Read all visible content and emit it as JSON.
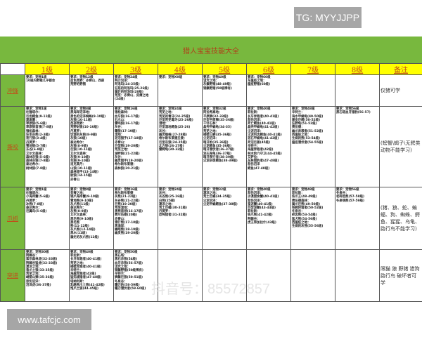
{
  "badges": {
    "tg": "TG: MYYJJPP",
    "site": "www.tafcjc.com"
  },
  "watermark": "抖音号：85572857",
  "title": "猎人宝宝技能大全",
  "colors": {
    "title_band": "#78b83e",
    "header": "#ffff00",
    "header_text": "#c0501a"
  },
  "headers": [
    "1级",
    "2级",
    "3级",
    "4级",
    "5级",
    "6级",
    "7级",
    "8级",
    "备注"
  ],
  "rows": [
    {
      "label": "冲锋",
      "note": "仅猪可学",
      "cells": [
        [
          "要求：宠物1级",
          "10级内野猪几乎都会"
        ],
        [
          "要求：宠物12级",
          "血色荒野：赤脊山，西部",
          "荒野的野猪"
        ],
        [
          "要求：宠物24级",
          "荆刃沼泽：",
          "阿洛玛(24-25级)",
          "狂怒的阿洛玛(25-26级)",
          "腐烂的阿洛玛(28级)",
          "荒芜：赤脊山，贫瘠之地",
          "(24级)"
        ],
        [
          "要求：宠物XX级"
        ],
        [
          "要求：宠物40级",
          "诅咒之地：",
          "灰鬃野猪(48-49级)",
          "钢鬃野猪(50级稀有)"
        ],
        [
          "要求：宠物60级",
          "东瘟疫之地：",
          "瘟疫野猪(60级)"
        ],
        [],
        []
      ]
    },
    {
      "label": "撕咬",
      "note": "(螃蟹\\蝎子\\无鳄类动物不能学习)",
      "cells": [
        [
          "要求：宠物1级",
          "杜隆塔尔：",
          "巨齿鳄鱼(9-11级)",
          "莫高雷：",
          "草原狼(5-6级)",
          "草原狼首领(7-8级)",
          "银松森林：",
          "狂毛灰熊(2-3级)",
          "夜行狼(3-4级)",
          "丹莫罗：",
          "雪地狼(5-7级)",
          "东谷(6-8级)",
          "艾尔文森林：",
          "森林灰狼(5-6级)",
          "森林灰狼(7-8级)",
          "泰达希尔：",
          "树林狼(7-8级)"
        ],
        [
          "要求：宠物8级",
          "黑海岸沼泽地：",
          "黑色的沼泽蜘蛛(9-10级)",
          "灰狼(10-11级)",
          "西部荒野：",
          "荒野豺狼(10-16级)",
          "丹莫罗：",
          "饥饿的灰狼(8-9级)",
          "灰狼(10级)",
          "泰达希尔：",
          "灰狼(8-9级)",
          "巨狼(10-11级)",
          "艾尔文森林：",
          "灰狼(9-10级)",
          "毛狼(9-10级)",
          "洛克莫丹：",
          "山狼(10-11级)",
          "森林猎手(13-14级)",
          "豺狼(14-15级)",
          "赤脊山"
        ],
        [
          "要求：宠物16级",
          "银松森林：",
          "血牙狼(16-17级)",
          "石爪山：",
          "雷鸣狼(16-17级)",
          "灰谷：",
          "霜狼(17-19级)",
          "湿地：",
          "泥沼猎手(17-18级)",
          "赤脊山：",
          "巨型狼(19-20级)",
          "荒芜之地：",
          "湖畔狼(21-22级)",
          "灰谷：",
          "幽灵猎手(19-20级)",
          "希尔斯布莱德：",
          "森林狼(20-21级)"
        ],
        [
          "要求：宠物24级",
          "荒芜之地：",
          "荒芜的毒牙(24-25级)",
          "巨型荒芜毒牙(25-26级)",
          "湿地：",
          "巨型湿地鳄鱼(25-26)",
          "灰谷：",
          "幽灵蜘蛛(27-28级)",
          "希尔斯布莱德丘陵：",
          "巨型灰狼(24-25级)",
          "北方狼(26-27级)",
          "雷鳄龟(30-32级)"
        ],
        [
          "要求：宠物32级",
          "阿拉希高地：",
          "平原狮(32-33级)",
          "巨型平原狮(35-36级)",
          "千针石林：",
          "晶壳甲蜗龟(34-35)",
          "荒芜之地：",
          "峭壁山狮(35-36级)",
          "尘泥沼泽：",
          "暗牙豹(35-36级)",
          "尘泥鳄鱼(35-36级)",
          "暗牙潜伏者(36-37级)",
          "泥石海龟(36-37级)",
          "暗牙爬行者(38-39级)",
          "尘泥杂斑鳄鱼(38-39级)"
        ],
        [
          "要求：宠物40级",
          "菲拉斯：",
          "长牙奔跑者(40-41级)",
          "悲伤沼泽：",
          "死亡鳄鱼(40-41级)",
          "晶壳甲蜗龟(41-42级)",
          "尘泥沼泽：",
          "尘泥利齿鳄鱼(40-41级)",
          "泥石甲蜗龟(41-42级)",
          "死沼巨兽(45级)",
          "辛特兰：",
          "海崖奔跑者(42级)",
          "林木豹穴守卫(44-45级)",
          "艾萨拉：",
          "丛林猎豹者(47-48级)",
          "悲伤沼泽",
          "鳄鱼(47-48级)"
        ],
        [
          "要求：宠物48级",
          "辛特兰：",
          "海水甲蜗龟(49-50级)",
          "厚皮巨鳄(50-52级)",
          "狂野龟(51-52级)",
          "费伍德：",
          "幽爪奔袭者(51-52级)",
          "西瘟疫之地：",
          "生病的熊(53-54级)",
          "瘟疫潜伏者(54-55级)"
        ],
        [
          "要求：宠物56级",
          "黑石塔血牙猎豹(56-57)"
        ]
      ]
    },
    {
      "label": "爪抓",
      "note": "(猪、狼、蛇、蝙蝠、狗、蜘蛛、鳄鱼、猩猩、乌龟、路行鸟不能学习)",
      "cells": [
        [
          "要求：宠物1级",
          "杜隆塔尔：",
          "小海岸蟹(5-6级)",
          "丹莫罗：",
          "冰熊(7-8级)",
          "泰达希尔：",
          "巨翼鸟(5-6级)"
        ],
        [
          "要求：宠物8级",
          "贫瘠之地：",
          "钢爪海岸蟹(9-10级)",
          "雪地熊(9-10级)",
          "灰爪熊(11级)",
          "泰达希尔：",
          "灰熊(8-9级)",
          "艾尔文森林：",
          "黑毛熊(9-10级)",
          "黑毛熊",
          "熊(11-12级)",
          "灰爪熊(12-14级)",
          "黑木(11级)",
          "腐烂的灰爪熊(12级)"
        ],
        [
          "要求：宠物16级",
          "希尔斯布莱德",
          "灰熊(21-22级)",
          "灰谷熊(21-22级)",
          "巨熊(19-20级)",
          "荒芜湿地：",
          "黑熊首领(16-17级)",
          "费尔伍德(20级)",
          "赤脊山：",
          "潜行熊(17-18级)",
          "黑海岸：",
          "幽暗熊(18-19级)",
          "幽灵熊(19-20级)"
        ],
        [
          "要求：宠物24级",
          "灰谷：",
          "灰谷熊(25-26级)",
          "白熊(25级)",
          "凄凉之地：",
          "荒土巨蝎(30-31级)",
          "丹莫罗：",
          "恐怖猎者(31-32级)"
        ],
        [
          "要求：宠物32级",
          "凄凉之地：",
          "荒土巨蝎(34-35级)",
          "尘泥沼泽：",
          "尘泥甲蜗鳄鱼(37-38级)"
        ],
        [
          "要求：宠物40级",
          "悲伤沼泽：",
          "沙漠猎食蟹(40-41级)",
          "悲伤沼泽：",
          "蛮泥蟹(40-41级)",
          "巨型泥蟹(43-44级)",
          "菲拉斯：",
          "铁爪熊(41-42级)",
          "荆棘谷：",
          "虎王拜加拉什(43级)"
        ],
        [
          "要求：宠物48级",
          "菲拉斯：",
          "铁爪王(48-49级)",
          "费伍德森林：",
          "腐爪巨熊(49-50级)",
          "铁鳄狩猎者(50-52级)",
          "冬泉谷：",
          "碎齿熊(53-54级)",
          "猛犬熊(54-56级)",
          "西瘟疫之地：",
          "生病的灰熊(55-56级)"
        ],
        [
          "要求：宠物56级",
          "冬泉谷：",
          "老碎齿熊(57-58级)",
          "冬泉鸮熊(57-59级)"
        ]
      ]
    },
    {
      "label": "突进",
      "note": "限猫 狼 野猪 猎狗 路行鸟 破坏者可学",
      "cells": [
        [
          "要求：宠物30级",
          "荆棘谷：",
          "紫宗森林虎(32-33级)",
          "荆棘谷猛虎(32-33级)",
          "凄凉之地：",
          "昏爪土狼(33-35级)",
          "荒芜之地：",
          "峭壁山狮(35-36级)",
          "悲伤沼泽：",
          "沼泽虎(36-37级)"
        ],
        [
          "要求：宠物40级",
          "菲拉斯：",
          "长牙奔跑者(40-41级)",
          "荒芜之地：",
          "峭壁奔跑者(40-41级)",
          "辛特兰：",
          "海崖奔跑者(42级)",
          "猛犸捕猎者(47-48级)",
          "塔纳利斯：",
          "乳酪熊爪土狼(41-42级)",
          "饱爪土狼(44-45级)"
        ],
        [
          "要求：宠物50级",
          "黑石塔：",
          "黑石赤狼(54级)",
          "血牙赤狼(56-57级)",
          "诅咒之地：",
          "钢鬃野猪(50级稀有)",
          "辛特兰：",
          "狮鬃巨狼(50-51级)",
          "冬泉谷：",
          "霜刃豹(58-59级)",
          "霜刃潜伏者(59-60级)"
        ],
        [],
        [],
        [],
        [],
        []
      ]
    }
  ]
}
